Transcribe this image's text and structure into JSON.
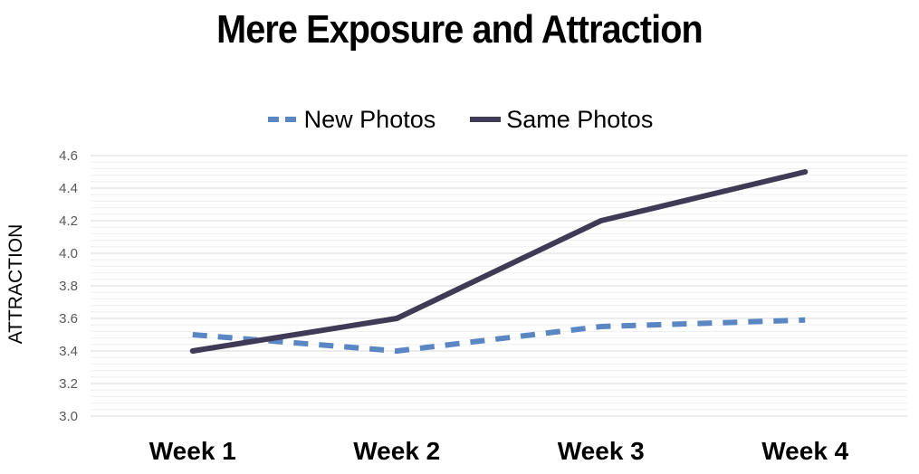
{
  "chart_data": {
    "type": "line",
    "title": "Mere Exposure and Attraction",
    "xlabel": "",
    "ylabel": "ATTRACTION",
    "categories": [
      "Week 1",
      "Week 2",
      "Week 3",
      "Week 4"
    ],
    "series": [
      {
        "name": "New Photos",
        "values": [
          3.5,
          3.4,
          3.55,
          3.59
        ],
        "color": "#5B86C4",
        "style": "dashed"
      },
      {
        "name": "Same Photos",
        "values": [
          3.4,
          3.6,
          4.2,
          4.5
        ],
        "color": "#3F3A55",
        "style": "solid"
      }
    ],
    "ylim": [
      3.0,
      4.6
    ],
    "yticks": [
      "3.0",
      "3.2",
      "3.4",
      "3.6",
      "3.8",
      "4.0",
      "4.2",
      "4.4",
      "4.6"
    ],
    "grid": true,
    "legend_position": "top-center"
  }
}
